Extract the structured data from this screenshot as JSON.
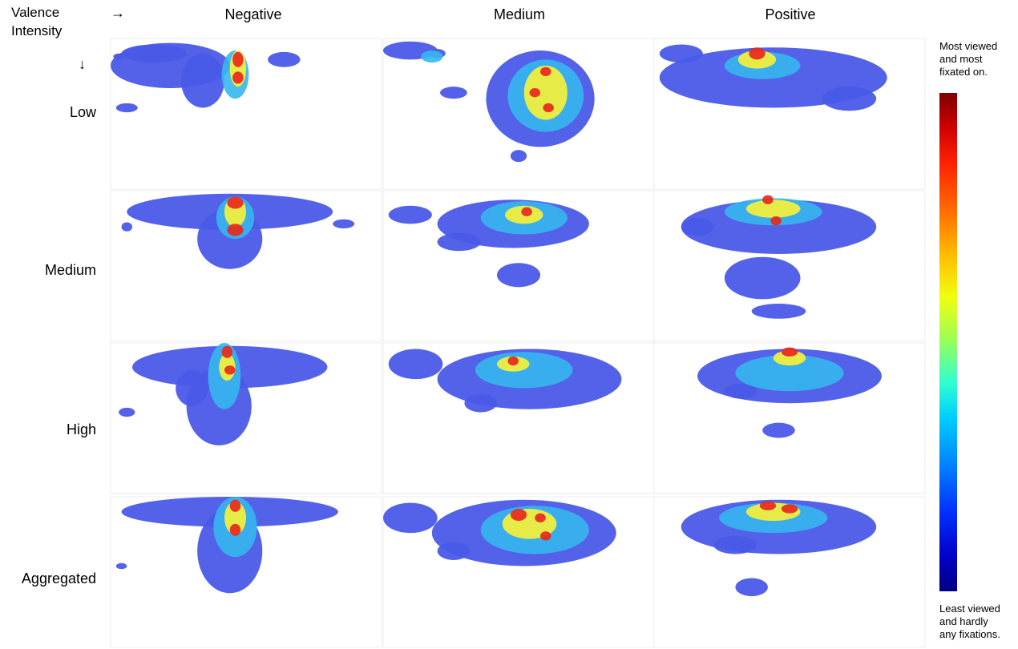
{
  "chart_data": {
    "type": "heatmap",
    "title": "",
    "corner_label": [
      "Valence",
      "Intensity"
    ],
    "column_axis_arrow": "→",
    "row_axis_arrow": "↓",
    "columns": [
      "Negative",
      "Medium",
      "Positive"
    ],
    "rows": [
      "Low",
      "Medium",
      "High",
      "Aggregated"
    ],
    "colorbar": {
      "colormap": "jet",
      "top_label": [
        "Most viewed",
        "and most",
        "fixated on."
      ],
      "bottom_label": [
        "Least viewed",
        "and hardly",
        "any fixations."
      ]
    },
    "palette": [
      "#4a5ae8",
      "#36b7f0",
      "#f5f03a",
      "#ff8a1c",
      "#e8281c"
    ]
  }
}
